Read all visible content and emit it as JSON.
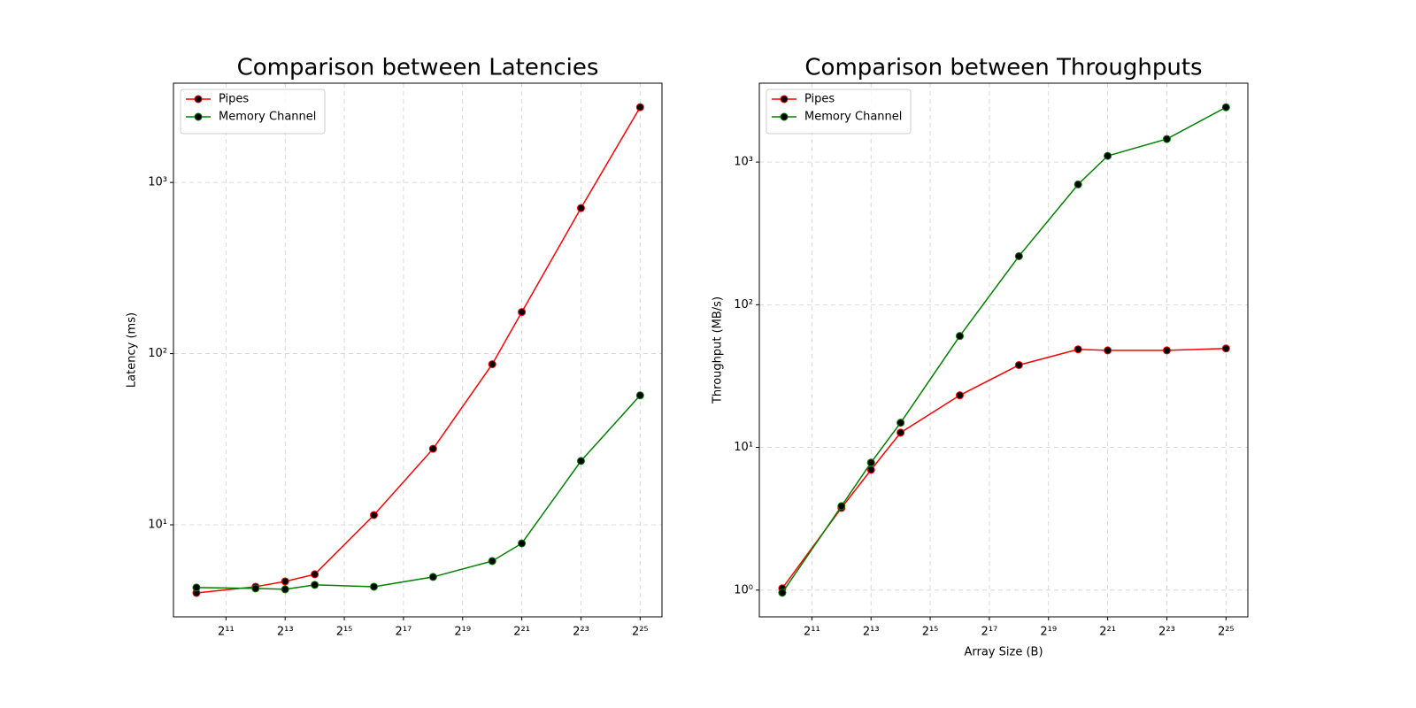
{
  "chart_data": [
    {
      "type": "line",
      "title": "Comparison between Latencies",
      "y_label": "Latency (ms)",
      "x": [
        1024,
        4096,
        8192,
        16384,
        65536,
        262144,
        1048576,
        2097152,
        8388608,
        33554432
      ],
      "series": [
        {
          "name": "Pipes",
          "color": "#ff0000",
          "values": [
            4.0,
            4.35,
            4.67,
            5.14,
            11.4,
            27.8,
            86.7,
            175,
            708,
            2750
          ]
        },
        {
          "name": "Memory Channel",
          "color": "#008000",
          "values": [
            4.3,
            4.25,
            4.2,
            4.46,
            4.35,
            4.96,
            6.14,
            7.79,
            23.6,
            57
          ]
        }
      ],
      "xscale": "log",
      "xbase": 2,
      "yscale": "log",
      "ybase": 10,
      "xlim": [
        598,
        56000000
      ],
      "ylim": [
        2.9,
        3800
      ],
      "xticks": [
        {
          "value": 2048,
          "label": "2¹¹"
        },
        {
          "value": 8192,
          "label": "2¹³"
        },
        {
          "value": 32768,
          "label": "2¹⁵"
        },
        {
          "value": 131072,
          "label": "2¹⁷"
        },
        {
          "value": 524288,
          "label": "2¹⁹"
        },
        {
          "value": 2097152,
          "label": "2²¹"
        },
        {
          "value": 8388608,
          "label": "2²³"
        },
        {
          "value": 33554432,
          "label": "2²⁵"
        }
      ],
      "yticks": [
        {
          "value": 10,
          "label": "10¹"
        },
        {
          "value": 100,
          "label": "10²"
        },
        {
          "value": 1000,
          "label": "10³"
        }
      ],
      "grid": true,
      "legend": "upper-left"
    },
    {
      "type": "line",
      "title": "Comparison between Throughputs",
      "y_label": "Throughput (MB/s)",
      "x_label": "Array Size (B)",
      "x": [
        1024,
        4096,
        8192,
        16384,
        65536,
        262144,
        1048576,
        2097152,
        8388608,
        33554432
      ],
      "series": [
        {
          "name": "Pipes",
          "color": "#ff0000",
          "values": [
            1.03,
            3.77,
            6.97,
            12.7,
            23.2,
            37.8,
            48.7,
            47.9,
            47.9,
            49.4
          ]
        },
        {
          "name": "Memory Channel",
          "color": "#008000",
          "values": [
            0.96,
            3.88,
            7.83,
            14.9,
            60.4,
            219,
            697,
            1105,
            1450,
            2420
          ]
        }
      ],
      "xscale": "log",
      "xbase": 2,
      "yscale": "log",
      "ybase": 10,
      "xlim": [
        598,
        56000000
      ],
      "ylim": [
        0.65,
        3570
      ],
      "xticks": [
        {
          "value": 2048,
          "label": "2¹¹"
        },
        {
          "value": 8192,
          "label": "2¹³"
        },
        {
          "value": 32768,
          "label": "2¹⁵"
        },
        {
          "value": 131072,
          "label": "2¹⁷"
        },
        {
          "value": 524288,
          "label": "2¹⁹"
        },
        {
          "value": 2097152,
          "label": "2²¹"
        },
        {
          "value": 8388608,
          "label": "2²³"
        },
        {
          "value": 33554432,
          "label": "2²⁵"
        }
      ],
      "yticks": [
        {
          "value": 1,
          "label": "10⁰"
        },
        {
          "value": 10,
          "label": "10¹"
        },
        {
          "value": 100,
          "label": "10²"
        },
        {
          "value": 1000,
          "label": "10³"
        }
      ],
      "grid": true,
      "legend": "upper-left"
    }
  ]
}
